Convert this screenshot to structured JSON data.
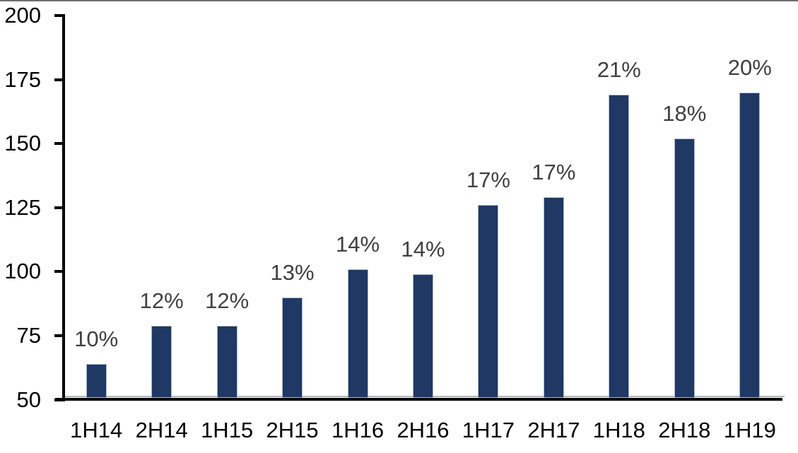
{
  "chart_data": {
    "type": "bar",
    "categories": [
      "1H14",
      "2H14",
      "1H15",
      "2H15",
      "1H16",
      "2H16",
      "1H17",
      "2H17",
      "1H18",
      "2H18",
      "1H19"
    ],
    "values": [
      64,
      79,
      79,
      90,
      101,
      99,
      126,
      129,
      169,
      152,
      170
    ],
    "bar_labels": [
      "10%",
      "12%",
      "12%",
      "13%",
      "14%",
      "14%",
      "17%",
      "17%",
      "21%",
      "18%",
      "20%"
    ],
    "title": "",
    "xlabel": "",
    "ylabel": "",
    "ylim": [
      50,
      200
    ],
    "y_ticks": [
      50,
      75,
      100,
      125,
      150,
      175,
      200
    ],
    "grid": "off",
    "legend": "none",
    "colors": {
      "bar_fill": "#1F3864",
      "bar_border": "#AEB9CC",
      "data_label": "#404040",
      "axis_line": "#000000",
      "tick_label": "#000000",
      "baseline_gridline": "#AFB5BB",
      "top_edge_line": "#707070",
      "background": "#FFFFFF"
    }
  }
}
